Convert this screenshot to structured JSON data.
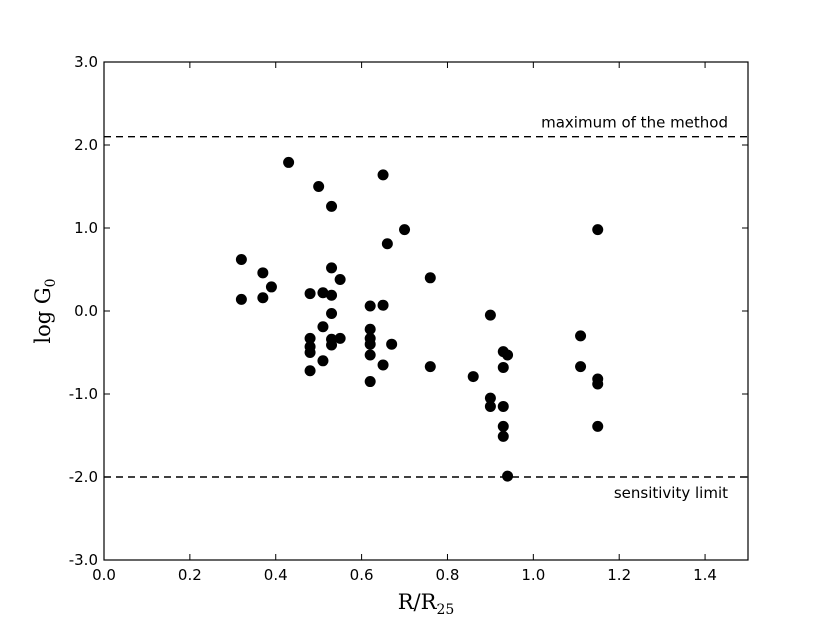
{
  "chart_data": {
    "type": "scatter",
    "title": "",
    "xlabel": {
      "main": "R/R",
      "sub": "25"
    },
    "ylabel": {
      "main": "log G",
      "sub": "0"
    },
    "xlim": [
      0.0,
      1.5
    ],
    "ylim": [
      -3.0,
      3.0
    ],
    "grid": false,
    "legend": "none",
    "x_ticks": [
      0.0,
      0.2,
      0.4,
      0.6,
      0.8,
      1.0,
      1.2,
      1.4
    ],
    "x_tick_labels": [
      "0.0",
      "0.2",
      "0.4",
      "0.6",
      "0.8",
      "1.0",
      "1.2",
      "1.4"
    ],
    "y_ticks": [
      3.0,
      2.0,
      1.0,
      0.0,
      -1.0,
      -2.0,
      -3.0
    ],
    "y_tick_labels": [
      "3.0",
      "2.0",
      "1.0",
      "0.0",
      "-1.0",
      "-2.0",
      "-3.0"
    ],
    "reference_lines": [
      {
        "y": 2.1,
        "label": "maximum of the method",
        "label_position": "above-right"
      },
      {
        "y": -2.0,
        "label": "sensitivity limit",
        "label_position": "below-right"
      }
    ],
    "marker_color": "#000000",
    "points": [
      {
        "x": 0.32,
        "y": 0.62
      },
      {
        "x": 0.32,
        "y": 0.14
      },
      {
        "x": 0.37,
        "y": 0.46
      },
      {
        "x": 0.37,
        "y": 0.16
      },
      {
        "x": 0.39,
        "y": 0.29
      },
      {
        "x": 0.43,
        "y": 1.79
      },
      {
        "x": 0.48,
        "y": 0.21
      },
      {
        "x": 0.48,
        "y": -0.33
      },
      {
        "x": 0.48,
        "y": -0.43
      },
      {
        "x": 0.48,
        "y": -0.5
      },
      {
        "x": 0.48,
        "y": -0.72
      },
      {
        "x": 0.5,
        "y": 1.5
      },
      {
        "x": 0.51,
        "y": 0.22
      },
      {
        "x": 0.51,
        "y": -0.19
      },
      {
        "x": 0.51,
        "y": -0.6
      },
      {
        "x": 0.53,
        "y": 1.26
      },
      {
        "x": 0.53,
        "y": 0.52
      },
      {
        "x": 0.53,
        "y": 0.19
      },
      {
        "x": 0.53,
        "y": -0.03
      },
      {
        "x": 0.53,
        "y": -0.34
      },
      {
        "x": 0.53,
        "y": -0.41
      },
      {
        "x": 0.55,
        "y": 0.38
      },
      {
        "x": 0.55,
        "y": -0.33
      },
      {
        "x": 0.62,
        "y": 0.06
      },
      {
        "x": 0.62,
        "y": -0.22
      },
      {
        "x": 0.62,
        "y": -0.33
      },
      {
        "x": 0.62,
        "y": -0.4
      },
      {
        "x": 0.62,
        "y": -0.53
      },
      {
        "x": 0.62,
        "y": -0.85
      },
      {
        "x": 0.65,
        "y": 1.64
      },
      {
        "x": 0.65,
        "y": 0.07
      },
      {
        "x": 0.65,
        "y": -0.65
      },
      {
        "x": 0.66,
        "y": 0.81
      },
      {
        "x": 0.67,
        "y": -0.4
      },
      {
        "x": 0.7,
        "y": 0.98
      },
      {
        "x": 0.76,
        "y": 0.4
      },
      {
        "x": 0.76,
        "y": -0.67
      },
      {
        "x": 0.86,
        "y": -0.79
      },
      {
        "x": 0.9,
        "y": -0.05
      },
      {
        "x": 0.9,
        "y": -1.05
      },
      {
        "x": 0.9,
        "y": -1.15
      },
      {
        "x": 0.93,
        "y": -0.49
      },
      {
        "x": 0.93,
        "y": -0.68
      },
      {
        "x": 0.93,
        "y": -1.15
      },
      {
        "x": 0.93,
        "y": -1.39
      },
      {
        "x": 0.93,
        "y": -1.51
      },
      {
        "x": 0.94,
        "y": -0.53
      },
      {
        "x": 0.94,
        "y": -1.99
      },
      {
        "x": 1.11,
        "y": -0.3
      },
      {
        "x": 1.11,
        "y": -0.67
      },
      {
        "x": 1.15,
        "y": 0.98
      },
      {
        "x": 1.15,
        "y": -0.82
      },
      {
        "x": 1.15,
        "y": -0.88
      },
      {
        "x": 1.15,
        "y": -1.39
      }
    ]
  }
}
